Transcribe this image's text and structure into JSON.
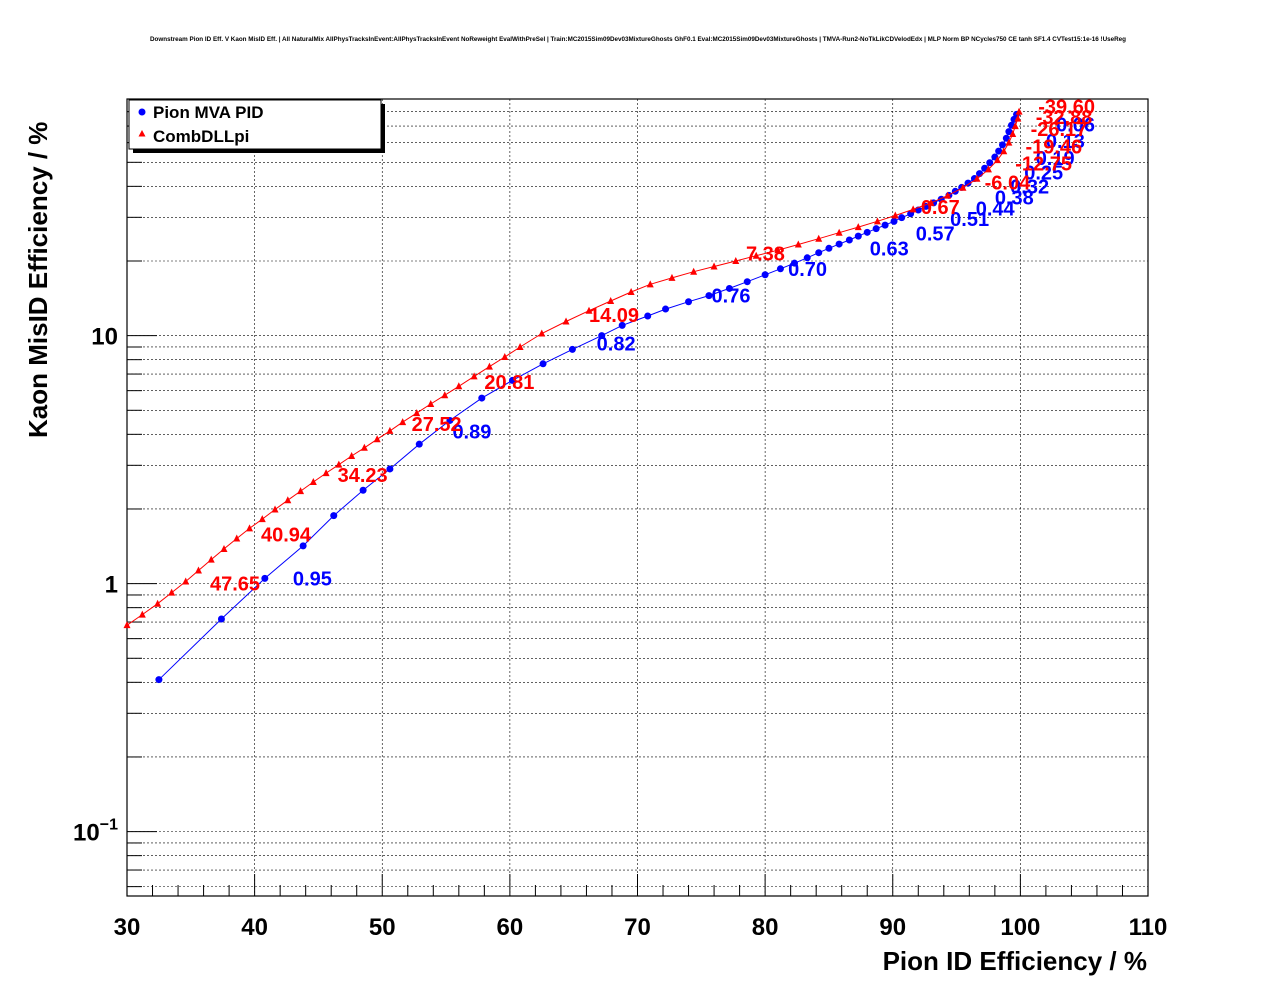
{
  "chart_data": {
    "type": "scatter",
    "title": "Downstream Pion ID Eff. V Kaon MisID Eff. | All NaturalMix AllPhysTracksInEvent:AllPhysTracksInEvent NoReweight EvalWithPreSel | Train:MC2015Sim09Dev03MixtureGhosts GhF0.1 Eval:MC2015Sim09Dev03MixtureGhosts | TMVA-Run2-NoTkLikCDVelodEdx | MLP Norm BP NCycles750 CE tanh SF1.4 CVTest15:1e-16 !UseReg",
    "xlabel": "Pion ID Efficiency / %",
    "ylabel": "Kaon MisID Efficiency / %",
    "xlim": [
      30,
      110
    ],
    "ylim": [
      0.055,
      90
    ],
    "yscale": "log",
    "grid": true,
    "legend_position": "top-left",
    "x_ticks": [
      "30",
      "40",
      "50",
      "60",
      "70",
      "80",
      "90",
      "100",
      "110"
    ],
    "y_ticks": [
      {
        "value": 0.1,
        "base": "10",
        "exp": "−1"
      },
      {
        "value": 1,
        "base": "1",
        "exp": ""
      },
      {
        "value": 10,
        "base": "10",
        "exp": ""
      }
    ],
    "series": [
      {
        "name": "Pion MVA PID",
        "color": "#0000ff",
        "marker": "circle",
        "x": [
          32.5,
          37.4,
          40.8,
          43.8,
          46.2,
          48.5,
          50.6,
          52.9,
          55.3,
          57.8,
          60.2,
          62.6,
          64.9,
          67.2,
          68.8,
          70.8,
          72.2,
          74.0,
          75.6,
          77.2,
          78.6,
          80.0,
          81.2,
          82.3,
          83.3,
          84.2,
          85.0,
          85.8,
          86.6,
          87.3,
          88.0,
          88.7,
          89.4,
          90.1,
          90.7,
          91.4,
          92.0,
          92.6,
          93.2,
          93.8,
          94.4,
          94.9,
          95.4,
          95.9,
          96.4,
          96.8,
          97.2,
          97.6,
          98.0,
          98.3,
          98.6,
          98.9,
          99.1,
          99.3,
          99.5,
          99.7
        ],
        "y": [
          0.41,
          0.72,
          1.05,
          1.42,
          1.88,
          2.38,
          2.9,
          3.65,
          4.55,
          5.6,
          6.6,
          7.7,
          8.8,
          10.0,
          11.0,
          12.0,
          12.8,
          13.7,
          14.5,
          15.5,
          16.5,
          17.6,
          18.6,
          19.6,
          20.6,
          21.6,
          22.5,
          23.4,
          24.3,
          25.2,
          26.1,
          27.0,
          27.9,
          28.9,
          29.9,
          31.0,
          32.1,
          33.2,
          34.3,
          35.5,
          36.8,
          38.2,
          39.6,
          41.2,
          43.0,
          45.0,
          47.3,
          49.8,
          52.5,
          55.5,
          58.8,
          62.5,
          66.5,
          70.5,
          74.5,
          78.0
        ]
      },
      {
        "name": "CombDLLpi",
        "color": "#ff0000",
        "marker": "triangle",
        "x": [
          30.0,
          31.2,
          32.4,
          33.5,
          34.6,
          35.6,
          36.6,
          37.6,
          38.6,
          39.6,
          40.6,
          41.6,
          42.6,
          43.6,
          44.6,
          45.6,
          46.6,
          47.6,
          48.6,
          49.6,
          50.6,
          51.6,
          52.7,
          53.8,
          54.9,
          56.0,
          57.2,
          58.4,
          59.6,
          60.8,
          62.5,
          64.4,
          66.2,
          67.9,
          69.5,
          71.0,
          72.7,
          74.4,
          76.0,
          77.7,
          79.3,
          81.0,
          82.6,
          84.2,
          85.8,
          87.3,
          88.8,
          90.2,
          91.6,
          93.0,
          94.3,
          95.5,
          96.6,
          97.5,
          98.2,
          98.7,
          99.1,
          99.4,
          99.6,
          99.8,
          99.9
        ],
        "y": [
          0.68,
          0.75,
          0.83,
          0.92,
          1.02,
          1.13,
          1.25,
          1.38,
          1.52,
          1.67,
          1.82,
          1.99,
          2.17,
          2.36,
          2.57,
          2.79,
          3.02,
          3.27,
          3.53,
          3.82,
          4.13,
          4.48,
          4.87,
          5.3,
          5.75,
          6.25,
          6.85,
          7.5,
          8.2,
          9.0,
          10.2,
          11.4,
          12.6,
          13.8,
          15.0,
          16.1,
          17.1,
          18.1,
          19.0,
          20.0,
          21.0,
          22.1,
          23.3,
          24.6,
          26.0,
          27.4,
          28.9,
          30.5,
          32.3,
          34.3,
          36.7,
          39.5,
          42.9,
          46.8,
          51.0,
          55.4,
          60.0,
          65.0,
          70.0,
          75.0,
          80.0
        ]
      }
    ],
    "annotations": [
      {
        "text": "0.95",
        "series": "Pion MVA PID",
        "x": 43.0,
        "y": 1.05
      },
      {
        "text": "0.89",
        "series": "Pion MVA PID",
        "x": 55.5,
        "y": 4.1
      },
      {
        "text": "0.82",
        "series": "Pion MVA PID",
        "x": 66.8,
        "y": 9.3
      },
      {
        "text": "0.76",
        "series": "Pion MVA PID",
        "x": 75.8,
        "y": 14.5
      },
      {
        "text": "0.70",
        "series": "Pion MVA PID",
        "x": 81.8,
        "y": 18.6
      },
      {
        "text": "0.63",
        "series": "Pion MVA PID",
        "x": 88.2,
        "y": 22.5
      },
      {
        "text": "0.57",
        "series": "Pion MVA PID",
        "x": 91.8,
        "y": 25.8
      },
      {
        "text": "0.51",
        "series": "Pion MVA PID",
        "x": 94.5,
        "y": 29.5
      },
      {
        "text": "0.44",
        "series": "Pion MVA PID",
        "x": 96.5,
        "y": 32.5
      },
      {
        "text": "0.38",
        "series": "Pion MVA PID",
        "x": 98.0,
        "y": 36.0
      },
      {
        "text": "0.32",
        "series": "Pion MVA PID",
        "x": 99.2,
        "y": 40.0
      },
      {
        "text": "0.25",
        "series": "Pion MVA PID",
        "x": 100.3,
        "y": 45.5
      },
      {
        "text": "0.19",
        "series": "Pion MVA PID",
        "x": 101.2,
        "y": 52.0
      },
      {
        "text": "0.13",
        "series": "Pion MVA PID",
        "x": 102.0,
        "y": 61.0
      },
      {
        "text": "0.06",
        "series": "Pion MVA PID",
        "x": 102.8,
        "y": 71.0
      },
      {
        "text": "47.65",
        "series": "CombDLLpi",
        "x": 36.5,
        "y": 1.0
      },
      {
        "text": "40.94",
        "series": "CombDLLpi",
        "x": 40.5,
        "y": 1.58
      },
      {
        "text": "34.23",
        "series": "CombDLLpi",
        "x": 46.5,
        "y": 2.74
      },
      {
        "text": "27.52",
        "series": "CombDLLpi",
        "x": 52.3,
        "y": 4.4
      },
      {
        "text": "20.81",
        "series": "CombDLLpi",
        "x": 58.0,
        "y": 6.5
      },
      {
        "text": "14.09",
        "series": "CombDLLpi",
        "x": 66.2,
        "y": 12.1
      },
      {
        "text": "7.38",
        "series": "CombDLLpi",
        "x": 78.5,
        "y": 21.4
      },
      {
        "text": "0.67",
        "series": "CombDLLpi",
        "x": 92.2,
        "y": 33.0
      },
      {
        "text": "-6.04",
        "series": "CombDLLpi",
        "x": 97.2,
        "y": 41.5
      },
      {
        "text": "-12.75",
        "series": "CombDLLpi",
        "x": 99.6,
        "y": 49.5
      },
      {
        "text": "-19.46",
        "series": "CombDLLpi",
        "x": 100.4,
        "y": 58.0
      },
      {
        "text": "-26.17",
        "series": "CombDLLpi",
        "x": 100.8,
        "y": 68.0
      },
      {
        "text": "-32.88",
        "series": "CombDLLpi",
        "x": 101.2,
        "y": 76.0
      },
      {
        "text": "-39.60",
        "series": "CombDLLpi",
        "x": 101.4,
        "y": 84.0
      }
    ]
  }
}
